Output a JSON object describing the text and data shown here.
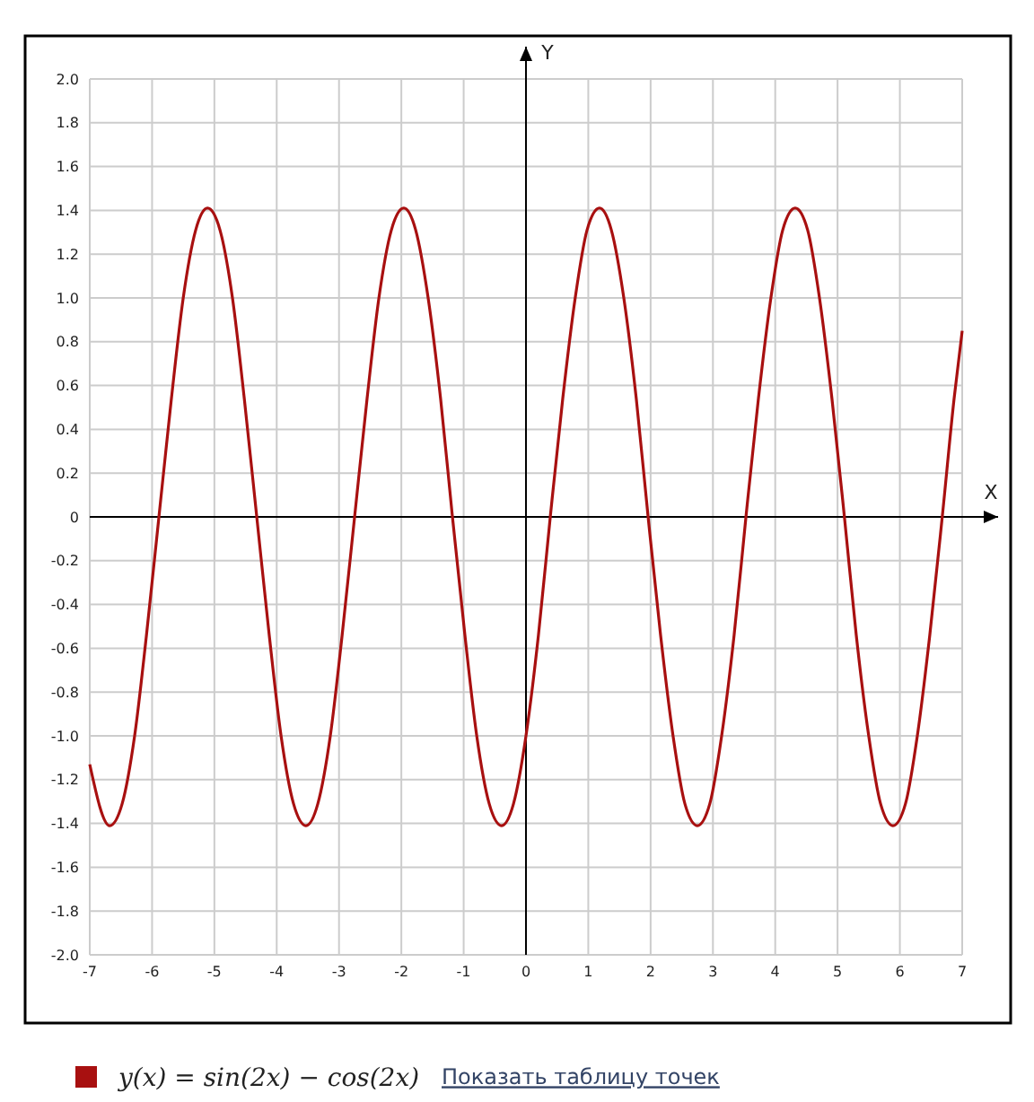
{
  "chart_data": {
    "type": "line",
    "xlabel": "X",
    "ylabel": "Y",
    "xlim": [
      -7,
      7
    ],
    "xticks": [
      -7,
      -6,
      -5,
      -4,
      -3,
      -2,
      -1,
      0,
      1,
      2,
      3,
      4,
      5,
      6,
      7
    ],
    "ylim": [
      -2,
      2
    ],
    "yticks": [
      {
        "value": -2,
        "label": "-2.0"
      },
      -1.8,
      -1.6,
      -1.4,
      -1.2,
      {
        "value": -1,
        "label": "-1.0"
      },
      -0.8,
      -0.6,
      -0.4,
      -0.2,
      0,
      0.2,
      0.4,
      0.6,
      0.8,
      {
        "value": 1,
        "label": "1.0"
      },
      1.2,
      1.4,
      1.6,
      1.8,
      {
        "value": 2,
        "label": "2.0"
      }
    ],
    "grid": true,
    "legend": "bottom left",
    "marker": "none",
    "line_style": "solid",
    "annotations": [
      "Показать таблицу точек"
    ],
    "series": [
      {
        "name": "y(x) = sin(2x) − cos(2x)",
        "color": "#a81010",
        "x": [
          -7,
          -6.68,
          -6.48,
          -6.28,
          -6.09,
          -5.89,
          -5.69,
          -5.5,
          -5.3,
          -5.11,
          -4.91,
          -4.71,
          -4.52,
          -4.32,
          -4.12,
          -3.93,
          -3.73,
          -3.53,
          -3.34,
          -3.14,
          -2.95,
          -2.75,
          -2.55,
          -2.36,
          -2.16,
          -1.96,
          -1.77,
          -1.57,
          -1.37,
          -1.18,
          -0.98,
          -0.79,
          -0.59,
          -0.39,
          -0.2,
          0,
          0.2,
          0.39,
          0.59,
          0.79,
          0.98,
          1.18,
          1.37,
          1.57,
          1.77,
          1.96,
          2.16,
          2.36,
          2.55,
          2.75,
          2.95,
          3.14,
          3.34,
          3.53,
          3.73,
          3.93,
          4.12,
          4.32,
          4.52,
          4.71,
          4.91,
          5.11,
          5.3,
          5.5,
          5.69,
          5.89,
          6.09,
          6.28,
          6.48,
          6.68,
          6.87,
          7
        ],
        "values": [
          -1.13,
          -1.41,
          -1.31,
          -1,
          -0.54,
          0,
          0.54,
          1,
          1.31,
          1.41,
          1.31,
          1,
          0.54,
          0,
          -0.54,
          -1,
          -1.31,
          -1.41,
          -1.31,
          -1,
          -0.54,
          0,
          0.54,
          1,
          1.31,
          1.41,
          1.31,
          1,
          0.54,
          0,
          -0.54,
          -1,
          -1.31,
          -1.41,
          -1.31,
          -1,
          -0.54,
          0,
          0.54,
          1,
          1.31,
          1.41,
          1.31,
          1,
          0.54,
          0,
          -0.54,
          -1,
          -1.31,
          -1.41,
          -1.31,
          -1,
          -0.54,
          0,
          0.54,
          1,
          1.31,
          1.41,
          1.31,
          1,
          0.54,
          0,
          -0.54,
          -1,
          -1.31,
          -1.41,
          -1.31,
          -1,
          -0.54,
          0,
          0.54,
          0.85
        ]
      }
    ]
  }
}
